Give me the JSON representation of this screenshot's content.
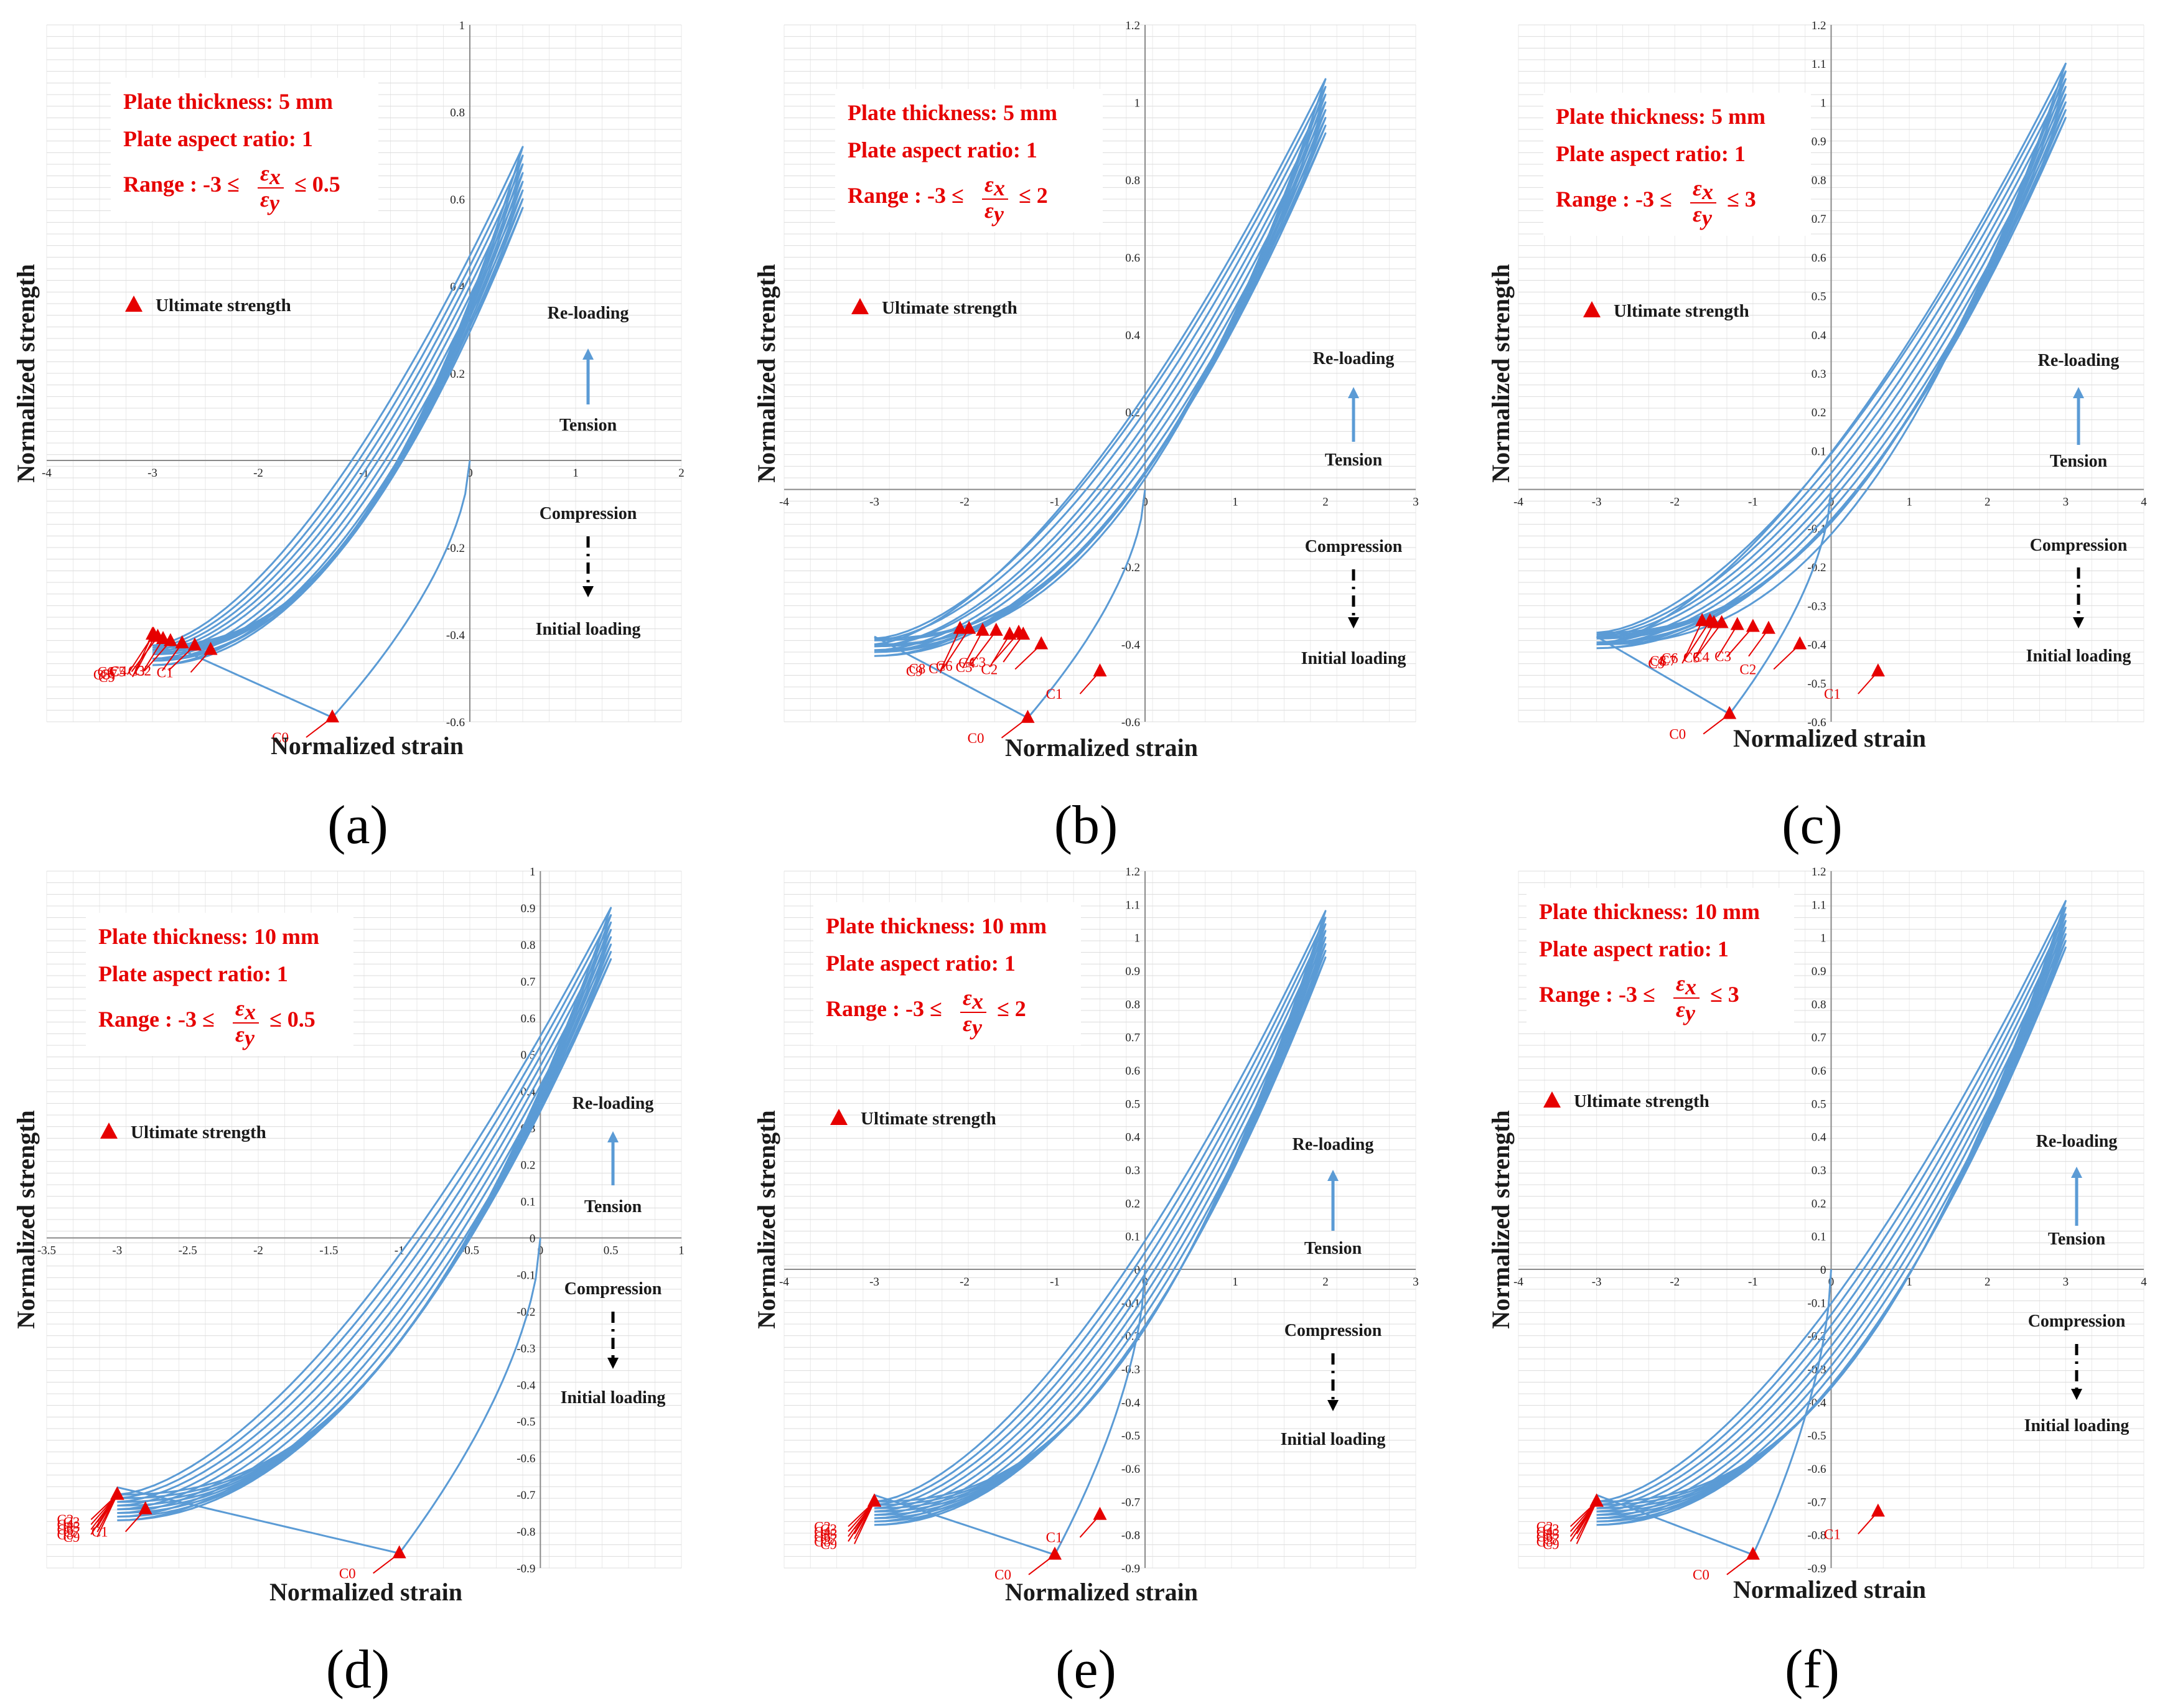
{
  "figure": {
    "legend_label": "Ultimate strength",
    "direction_labels": {
      "reloading": "Re-loading",
      "tension": "Tension",
      "compression": "Compression",
      "initial": "Initial loading"
    },
    "colors": {
      "curve": "#5b9bd5",
      "marker": "#e60000",
      "grid": "#dcdcdc",
      "text": "#1a1a1a"
    }
  },
  "chart_data": [
    {
      "id": "a",
      "panel_label": "(a)",
      "type": "line",
      "xlabel": "Normalized strain",
      "ylabel": "Normalized  strength",
      "info": [
        "Plate thickness: 5 mm",
        "Plate aspect ratio: 1"
      ],
      "range_label": {
        "prefix": "Range : -3 ≤",
        "suffix": "≤ 0.5"
      },
      "xlim": [
        -4,
        2
      ],
      "ylim": [
        -0.6,
        1
      ],
      "xticks": [
        -4,
        -3,
        -2,
        -1,
        0,
        1,
        2
      ],
      "yticks": [
        -0.6,
        -0.4,
        -0.2,
        0.2,
        0.4,
        0.6,
        0.8,
        1
      ],
      "max_strain": 0.5,
      "max_stress": 0.72,
      "ratio_range": [
        -3,
        0.5
      ],
      "ultimate_points": [
        {
          "label": "C0",
          "x": -1.3,
          "y": -0.59
        },
        {
          "label": "C1",
          "x": -2.45,
          "y": -0.435
        },
        {
          "label": "C2",
          "x": -2.6,
          "y": -0.425
        },
        {
          "label": "C3",
          "x": -2.72,
          "y": -0.42
        },
        {
          "label": "C4",
          "x": -2.83,
          "y": -0.415
        },
        {
          "label": "C5",
          "x": -2.9,
          "y": -0.41
        },
        {
          "label": "C6",
          "x": -2.95,
          "y": -0.405
        },
        {
          "label": "C7",
          "x": -2.98,
          "y": -0.405
        },
        {
          "label": "C8",
          "x": -2.99,
          "y": -0.4
        },
        {
          "label": "C9",
          "x": -3.0,
          "y": -0.4
        }
      ]
    },
    {
      "id": "b",
      "panel_label": "(b)",
      "type": "line",
      "xlabel": "Normalized strain",
      "ylabel": "Normalized  strength",
      "info": [
        "Plate thickness: 5 mm",
        "Plate aspect ratio: 1"
      ],
      "range_label": {
        "prefix": "Range : -3 ≤",
        "suffix": "≤ 2"
      },
      "xlim": [
        -4,
        3
      ],
      "ylim": [
        -0.6,
        1.2
      ],
      "xticks": [
        -4,
        -3,
        -2,
        -1,
        0,
        1,
        2,
        3
      ],
      "yticks": [
        -0.6,
        -0.4,
        -0.2,
        0.2,
        0.4,
        0.6,
        0.8,
        1,
        1.2
      ],
      "max_strain": 2,
      "max_stress": 1.06,
      "ratio_range": [
        -3,
        2
      ],
      "ultimate_points": [
        {
          "label": "C0",
          "x": -1.3,
          "y": -0.59
        },
        {
          "label": "C1",
          "x": -0.5,
          "y": -0.47
        },
        {
          "label": "C2",
          "x": -1.15,
          "y": -0.4
        },
        {
          "label": "C3",
          "x": -1.35,
          "y": -0.375
        },
        {
          "label": "C4",
          "x": -1.4,
          "y": -0.37
        },
        {
          "label": "C5",
          "x": -1.5,
          "y": -0.375
        },
        {
          "label": "C6",
          "x": -1.65,
          "y": -0.365
        },
        {
          "label": "C7",
          "x": -1.8,
          "y": -0.365
        },
        {
          "label": "C8",
          "x": -1.95,
          "y": -0.36
        },
        {
          "label": "C9",
          "x": -2.05,
          "y": -0.36
        }
      ]
    },
    {
      "id": "c",
      "panel_label": "(c)",
      "type": "line",
      "xlabel": "Normalized strain",
      "ylabel": "Normalized  strength",
      "info": [
        "Plate thickness: 5 mm",
        "Plate aspect ratio: 1"
      ],
      "range_label": {
        "prefix": "Range : -3 ≤",
        "suffix": "≤ 3"
      },
      "xlim": [
        -4,
        4
      ],
      "ylim": [
        -0.6,
        1.2
      ],
      "xticks": [
        -4,
        -3,
        -2,
        -1,
        0,
        1,
        2,
        3,
        4
      ],
      "yticks": [
        -0.6,
        -0.5,
        -0.4,
        -0.3,
        -0.2,
        -0.1,
        0.1,
        0.2,
        0.3,
        0.4,
        0.5,
        0.6,
        0.7,
        0.8,
        0.9,
        1,
        1.1,
        1.2
      ],
      "max_strain": 3,
      "max_stress": 1.1,
      "ratio_range": [
        -3,
        3
      ],
      "ultimate_points": [
        {
          "label": "C0",
          "x": -1.3,
          "y": -0.58
        },
        {
          "label": "C1",
          "x": 0.6,
          "y": -0.47
        },
        {
          "label": "C2",
          "x": -0.4,
          "y": -0.4
        },
        {
          "label": "C3",
          "x": -0.8,
          "y": -0.36
        },
        {
          "label": "C4",
          "x": -1.0,
          "y": -0.355
        },
        {
          "label": "C5",
          "x": -1.2,
          "y": -0.35
        },
        {
          "label": "C6",
          "x": -1.4,
          "y": -0.345
        },
        {
          "label": "C7",
          "x": -1.5,
          "y": -0.345
        },
        {
          "label": "C8",
          "x": -1.55,
          "y": -0.34
        },
        {
          "label": "C9",
          "x": -1.65,
          "y": -0.34
        }
      ]
    },
    {
      "id": "d",
      "panel_label": "(d)",
      "type": "line",
      "xlabel": "Normalized strain",
      "ylabel": "Normalized  strength",
      "info": [
        "Plate thickness: 10 mm",
        "Plate aspect ratio: 1"
      ],
      "range_label": {
        "prefix": "Range : -3 ≤",
        "suffix": "≤ 0.5"
      },
      "xlim": [
        -3.5,
        1
      ],
      "ylim": [
        -0.9,
        1
      ],
      "xticks": [
        -3.5,
        -3,
        -2.5,
        -2,
        -1.5,
        -1,
        -0.5,
        0,
        0.5,
        1
      ],
      "yticks": [
        -0.9,
        -0.8,
        -0.7,
        -0.6,
        -0.5,
        -0.4,
        -0.3,
        -0.2,
        -0.1,
        0,
        0.1,
        0.2,
        0.3,
        0.4,
        0.5,
        0.6,
        0.7,
        0.8,
        0.9,
        1
      ],
      "max_strain": 0.5,
      "max_stress": 0.9,
      "ratio_range": [
        -3,
        0.5
      ],
      "ultimate_points": [
        {
          "label": "C0",
          "x": -1.0,
          "y": -0.86
        },
        {
          "label": "C1",
          "x": -2.8,
          "y": -0.74
        },
        {
          "label": "C2",
          "x": -3.0,
          "y": -0.7
        },
        {
          "label": "C3",
          "x": -3.0,
          "y": -0.7
        },
        {
          "label": "C4",
          "x": -3.0,
          "y": -0.7
        },
        {
          "label": "C5",
          "x": -3.0,
          "y": -0.7
        },
        {
          "label": "C6",
          "x": -3.0,
          "y": -0.7
        },
        {
          "label": "C7",
          "x": -3.0,
          "y": -0.7
        },
        {
          "label": "C8",
          "x": -3.0,
          "y": -0.7
        },
        {
          "label": "C9",
          "x": -3.0,
          "y": -0.7
        }
      ]
    },
    {
      "id": "e",
      "panel_label": "(e)",
      "type": "line",
      "xlabel": "Normalized strain",
      "ylabel": "Normalized  strength",
      "info": [
        "Plate thickness: 10 mm",
        "Plate aspect ratio: 1"
      ],
      "range_label": {
        "prefix": "Range : -3 ≤",
        "suffix": "≤ 2"
      },
      "xlim": [
        -4,
        3
      ],
      "ylim": [
        -0.9,
        1.2
      ],
      "xticks": [
        -4,
        -3,
        -2,
        -1,
        0,
        1,
        2,
        3
      ],
      "yticks": [
        -0.9,
        -0.8,
        -0.7,
        -0.6,
        -0.5,
        -0.4,
        -0.3,
        -0.2,
        -0.1,
        0,
        0.1,
        0.2,
        0.3,
        0.4,
        0.5,
        0.6,
        0.7,
        0.8,
        0.9,
        1,
        1.1,
        1.2
      ],
      "max_strain": 2,
      "max_stress": 1.08,
      "ratio_range": [
        -3,
        2
      ],
      "ultimate_points": [
        {
          "label": "C0",
          "x": -1.0,
          "y": -0.86
        },
        {
          "label": "C1",
          "x": -0.5,
          "y": -0.74
        },
        {
          "label": "C2",
          "x": -3.0,
          "y": -0.7
        },
        {
          "label": "C3",
          "x": -3.0,
          "y": -0.7
        },
        {
          "label": "C4",
          "x": -3.0,
          "y": -0.7
        },
        {
          "label": "C5",
          "x": -3.0,
          "y": -0.7
        },
        {
          "label": "C6",
          "x": -3.0,
          "y": -0.7
        },
        {
          "label": "C7",
          "x": -3.0,
          "y": -0.7
        },
        {
          "label": "C8",
          "x": -3.0,
          "y": -0.7
        },
        {
          "label": "C9",
          "x": -3.0,
          "y": -0.7
        }
      ]
    },
    {
      "id": "f",
      "panel_label": "(f)",
      "type": "line",
      "xlabel": "Normalized strain",
      "ylabel": "Normalized  strength",
      "info": [
        "Plate thickness: 10 mm",
        "Plate aspect ratio: 1"
      ],
      "range_label": {
        "prefix": "Range : -3 ≤",
        "suffix": "≤ 3"
      },
      "xlim": [
        -4,
        4
      ],
      "ylim": [
        -0.9,
        1.2
      ],
      "xticks": [
        -4,
        -3,
        -2,
        -1,
        0,
        1,
        2,
        3,
        4
      ],
      "yticks": [
        -0.9,
        -0.8,
        -0.7,
        -0.6,
        -0.5,
        -0.4,
        -0.3,
        -0.2,
        -0.1,
        0,
        0.1,
        0.2,
        0.3,
        0.4,
        0.5,
        0.6,
        0.7,
        0.8,
        0.9,
        1,
        1.1,
        1.2
      ],
      "max_strain": 3,
      "max_stress": 1.11,
      "ratio_range": [
        -3,
        3
      ],
      "ultimate_points": [
        {
          "label": "C0",
          "x": -1.0,
          "y": -0.86
        },
        {
          "label": "C1",
          "x": 0.6,
          "y": -0.73
        },
        {
          "label": "C2",
          "x": -3.0,
          "y": -0.7
        },
        {
          "label": "C3",
          "x": -3.0,
          "y": -0.7
        },
        {
          "label": "C4",
          "x": -3.0,
          "y": -0.7
        },
        {
          "label": "C5",
          "x": -3.0,
          "y": -0.7
        },
        {
          "label": "C6",
          "x": -3.0,
          "y": -0.7
        },
        {
          "label": "C7",
          "x": -3.0,
          "y": -0.7
        },
        {
          "label": "C8",
          "x": -3.0,
          "y": -0.7
        },
        {
          "label": "C9",
          "x": -3.0,
          "y": -0.7
        }
      ]
    }
  ]
}
